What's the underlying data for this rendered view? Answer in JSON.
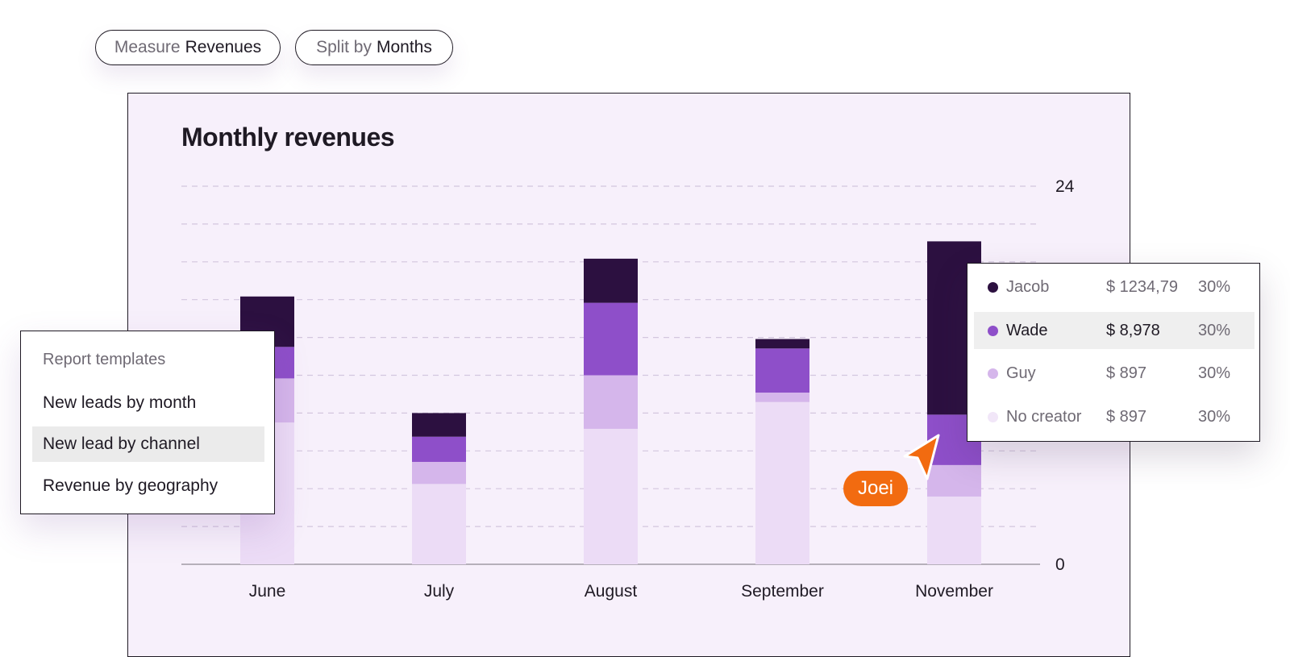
{
  "toolbar": {
    "measure": {
      "prefix": "Measure",
      "value": "Revenues"
    },
    "split": {
      "prefix": "Split by",
      "value": "Months"
    }
  },
  "chart_data": {
    "type": "bar",
    "stacked": true,
    "title": "Monthly revenues",
    "categories": [
      "June",
      "July",
      "August",
      "September",
      "November"
    ],
    "series": [
      {
        "name": "No creator",
        "color": "#ecdcf6",
        "values": [
          9.0,
          5.1,
          8.6,
          10.3,
          4.3
        ]
      },
      {
        "name": "Guy",
        "color": "#d5b6eb",
        "values": [
          2.8,
          1.4,
          3.4,
          0.6,
          2.0
        ]
      },
      {
        "name": "Wade",
        "color": "#8e4fc9",
        "values": [
          2.0,
          1.6,
          4.6,
          2.8,
          3.2
        ]
      },
      {
        "name": "Jacob",
        "color": "#2c1040",
        "values": [
          3.2,
          1.5,
          2.8,
          0.6,
          11.0
        ]
      }
    ],
    "yaxis": {
      "ticks": [
        "24",
        "0"
      ],
      "ylim": [
        0,
        24
      ],
      "gridlines": 10,
      "position": "right"
    },
    "xlabel": "",
    "ylabel": ""
  },
  "templates_menu": {
    "header": "Report templates",
    "items": [
      {
        "label": "New leads by month",
        "active": false
      },
      {
        "label": "New lead by channel",
        "active": true
      },
      {
        "label": "Revenue by geography",
        "active": false
      }
    ]
  },
  "tooltip": {
    "rows": [
      {
        "name": "Jacob",
        "amount": "$ 1234,79",
        "percent": "30%",
        "color": "#2c1040",
        "active": false
      },
      {
        "name": "Wade",
        "amount": "$ 8,978",
        "percent": "30%",
        "color": "#8e4fc9",
        "active": true
      },
      {
        "name": "Guy",
        "amount": "$ 897",
        "percent": "30%",
        "color": "#d5b6eb",
        "active": false
      },
      {
        "name": "No creator",
        "amount": "$ 897",
        "percent": "30%",
        "color": "#f1e6f8",
        "active": false
      }
    ]
  },
  "cursor": {
    "user": "Joei",
    "color": "#f26b10"
  }
}
